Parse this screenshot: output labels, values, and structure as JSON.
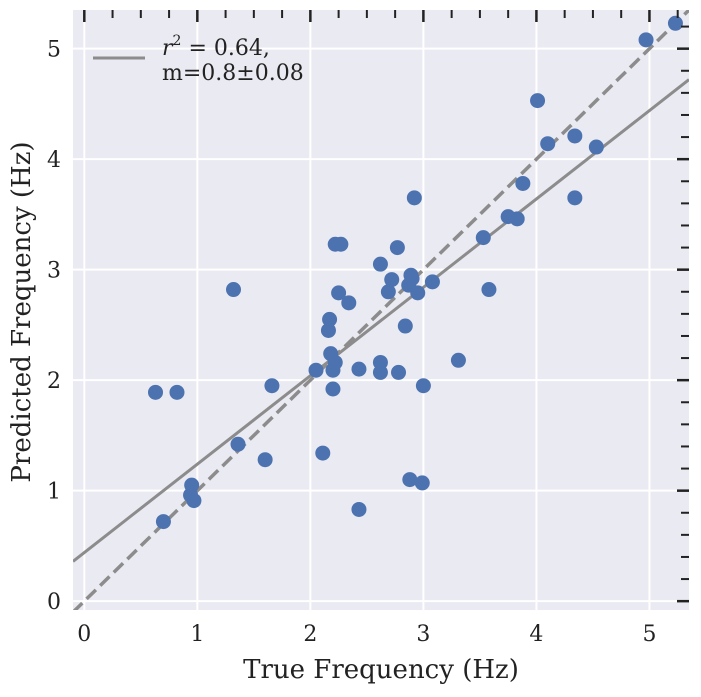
{
  "chart_data": {
    "type": "scatter",
    "xlabel": "True Frequency (Hz)",
    "ylabel": "Predicted Frequency (Hz)",
    "xlim": [
      -0.1,
      5.35
    ],
    "ylim": [
      -0.08,
      5.35
    ],
    "x_ticks": [
      "0",
      "1",
      "2",
      "3",
      "4",
      "5"
    ],
    "y_ticks": [
      "0",
      "1",
      "2",
      "3",
      "4",
      "5"
    ],
    "grid": true,
    "legend": {
      "placement": "top-left",
      "line1_symbol": "r",
      "line1_sup": "2",
      "line1_rest": " =  0.64,",
      "line2": "m=0.8±0.08"
    },
    "colors": {
      "background": "#eaeaf2",
      "grid": "#ffffff",
      "points": "#4c72b0",
      "lines": "#8c8c8c",
      "ticks": "#222222"
    },
    "fit_line": {
      "slope": 0.8,
      "intercept": 0.44,
      "style": "solid"
    },
    "identity_line": {
      "slope": 1.0,
      "intercept": 0.0,
      "style": "dashed"
    },
    "points": [
      {
        "x": 0.63,
        "y": 1.89
      },
      {
        "x": 0.82,
        "y": 1.89
      },
      {
        "x": 0.7,
        "y": 0.72
      },
      {
        "x": 0.94,
        "y": 0.96
      },
      {
        "x": 0.95,
        "y": 1.05
      },
      {
        "x": 0.97,
        "y": 0.91
      },
      {
        "x": 1.32,
        "y": 2.82
      },
      {
        "x": 1.36,
        "y": 1.42
      },
      {
        "x": 1.6,
        "y": 1.28
      },
      {
        "x": 1.66,
        "y": 1.95
      },
      {
        "x": 2.05,
        "y": 2.09
      },
      {
        "x": 2.11,
        "y": 1.34
      },
      {
        "x": 2.16,
        "y": 2.45
      },
      {
        "x": 2.17,
        "y": 2.55
      },
      {
        "x": 2.18,
        "y": 2.24
      },
      {
        "x": 2.2,
        "y": 2.09
      },
      {
        "x": 2.2,
        "y": 1.92
      },
      {
        "x": 2.22,
        "y": 2.16
      },
      {
        "x": 2.22,
        "y": 3.23
      },
      {
        "x": 2.27,
        "y": 3.23
      },
      {
        "x": 2.25,
        "y": 2.79
      },
      {
        "x": 2.34,
        "y": 2.7
      },
      {
        "x": 2.43,
        "y": 2.1
      },
      {
        "x": 2.43,
        "y": 0.83
      },
      {
        "x": 2.62,
        "y": 3.05
      },
      {
        "x": 2.62,
        "y": 2.16
      },
      {
        "x": 2.62,
        "y": 2.07
      },
      {
        "x": 2.69,
        "y": 2.8
      },
      {
        "x": 2.72,
        "y": 2.91
      },
      {
        "x": 2.77,
        "y": 3.2
      },
      {
        "x": 2.78,
        "y": 2.07
      },
      {
        "x": 2.84,
        "y": 2.49
      },
      {
        "x": 2.87,
        "y": 2.86
      },
      {
        "x": 2.89,
        "y": 2.95
      },
      {
        "x": 2.9,
        "y": 2.92
      },
      {
        "x": 2.92,
        "y": 3.65
      },
      {
        "x": 2.95,
        "y": 2.79
      },
      {
        "x": 2.88,
        "y": 1.1
      },
      {
        "x": 2.99,
        "y": 1.07
      },
      {
        "x": 3.0,
        "y": 1.95
      },
      {
        "x": 3.08,
        "y": 2.89
      },
      {
        "x": 3.31,
        "y": 2.18
      },
      {
        "x": 3.53,
        "y": 3.29
      },
      {
        "x": 3.58,
        "y": 2.82
      },
      {
        "x": 3.75,
        "y": 3.48
      },
      {
        "x": 3.83,
        "y": 3.46
      },
      {
        "x": 3.88,
        "y": 3.78
      },
      {
        "x": 4.01,
        "y": 4.53
      },
      {
        "x": 4.1,
        "y": 4.14
      },
      {
        "x": 4.34,
        "y": 4.21
      },
      {
        "x": 4.34,
        "y": 3.65
      },
      {
        "x": 4.53,
        "y": 4.11
      },
      {
        "x": 4.97,
        "y": 5.08
      },
      {
        "x": 5.23,
        "y": 5.23
      }
    ]
  }
}
